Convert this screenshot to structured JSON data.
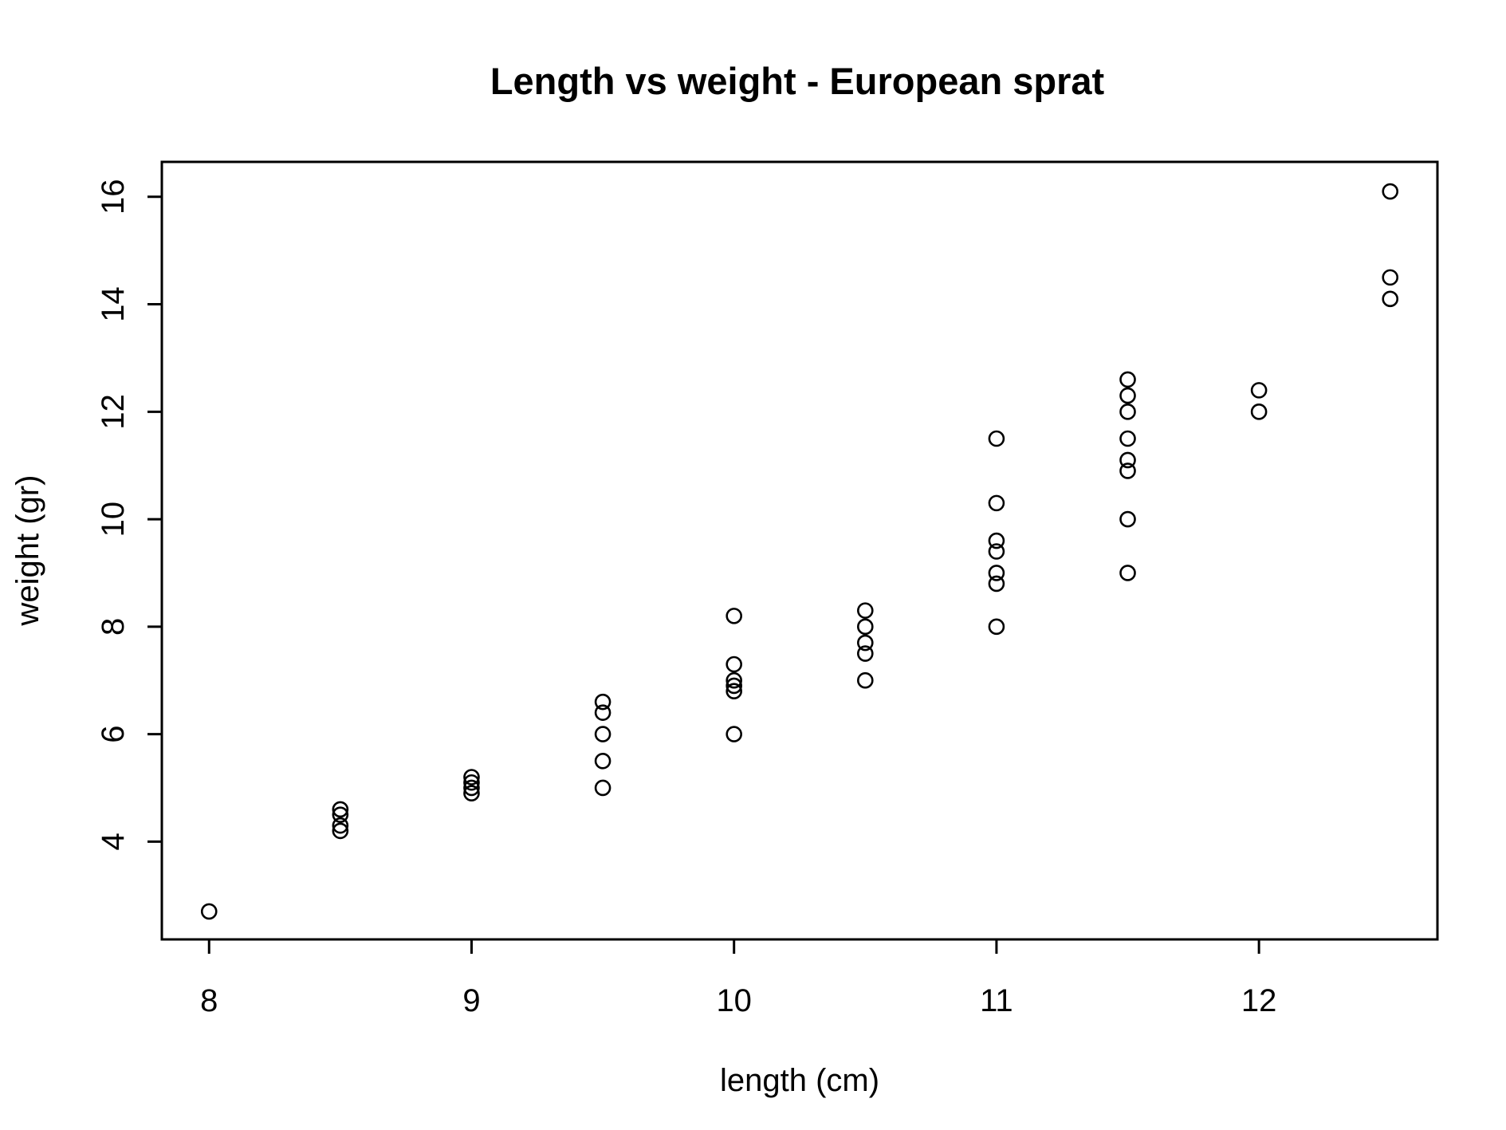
{
  "chart_data": {
    "type": "scatter",
    "title": "Length vs weight - European sprat",
    "xlabel": "length (cm)",
    "ylabel": "weight (gr)",
    "xlim": [
      7.82,
      12.68
    ],
    "ylim": [
      2.18,
      16.65
    ],
    "x_ticks": [
      8,
      9,
      10,
      11,
      12
    ],
    "y_ticks": [
      4,
      6,
      8,
      10,
      12,
      14,
      16
    ],
    "grid": false,
    "legend": "none",
    "points": [
      [
        8.0,
        2.7
      ],
      [
        8.5,
        4.2
      ],
      [
        8.5,
        4.3
      ],
      [
        8.5,
        4.5
      ],
      [
        8.5,
        4.6
      ],
      [
        9.0,
        4.9
      ],
      [
        9.0,
        5.0
      ],
      [
        9.0,
        5.1
      ],
      [
        9.0,
        5.2
      ],
      [
        9.5,
        5.0
      ],
      [
        9.5,
        5.5
      ],
      [
        9.5,
        6.0
      ],
      [
        9.5,
        6.4
      ],
      [
        9.5,
        6.6
      ],
      [
        10.0,
        6.0
      ],
      [
        10.0,
        6.8
      ],
      [
        10.0,
        6.9
      ],
      [
        10.0,
        7.0
      ],
      [
        10.0,
        7.3
      ],
      [
        10.0,
        8.2
      ],
      [
        10.5,
        7.0
      ],
      [
        10.5,
        7.5
      ],
      [
        10.5,
        7.7
      ],
      [
        10.5,
        8.0
      ],
      [
        10.5,
        8.3
      ],
      [
        11.0,
        8.0
      ],
      [
        11.0,
        8.8
      ],
      [
        11.0,
        9.0
      ],
      [
        11.0,
        9.4
      ],
      [
        11.0,
        9.6
      ],
      [
        11.0,
        10.3
      ],
      [
        11.0,
        11.5
      ],
      [
        11.5,
        9.0
      ],
      [
        11.5,
        10.0
      ],
      [
        11.5,
        10.9
      ],
      [
        11.5,
        11.1
      ],
      [
        11.5,
        11.5
      ],
      [
        11.5,
        12.0
      ],
      [
        11.5,
        12.3
      ],
      [
        11.5,
        12.6
      ],
      [
        12.0,
        12.0
      ],
      [
        12.0,
        12.4
      ],
      [
        12.5,
        14.1
      ],
      [
        12.5,
        14.5
      ],
      [
        12.5,
        16.1
      ]
    ]
  }
}
